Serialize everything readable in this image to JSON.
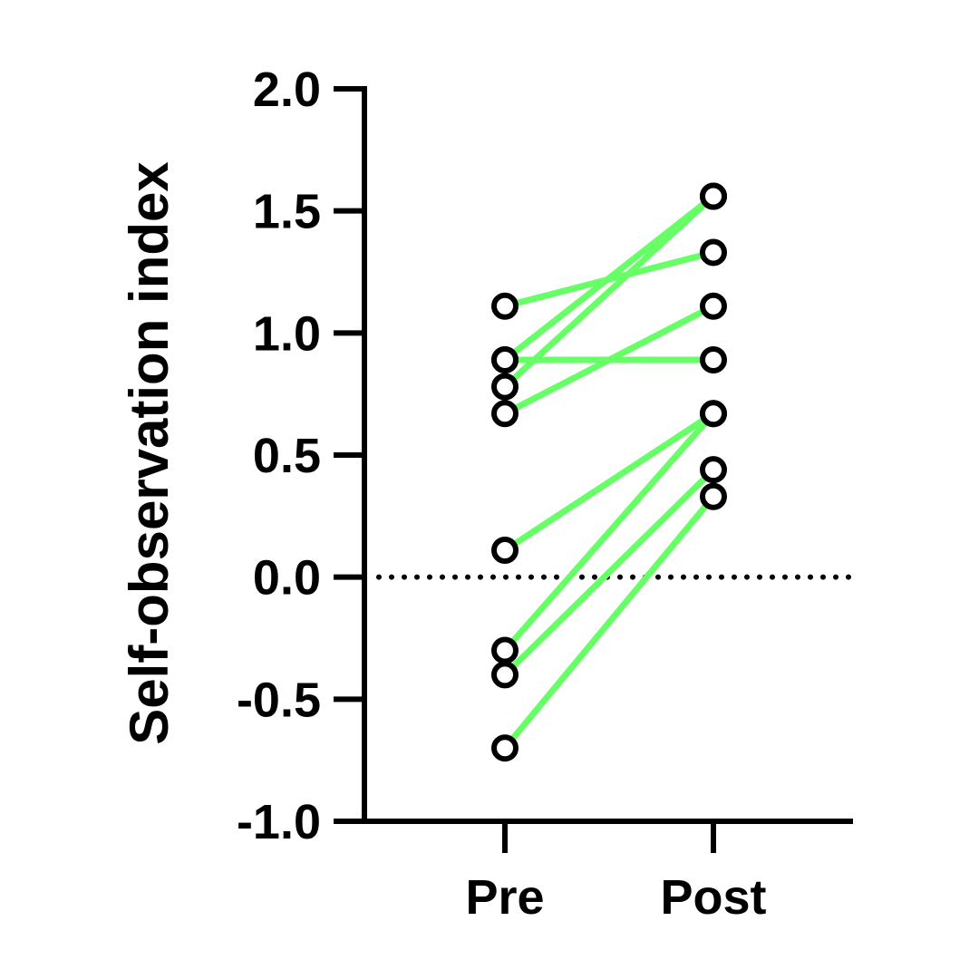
{
  "chart_data": {
    "type": "line",
    "ylabel": "Self-observation index",
    "xlabel": "",
    "categories": [
      "Pre",
      "Post"
    ],
    "ylim": [
      -1.0,
      2.0
    ],
    "yticks": [
      "-1.0",
      "-0.5",
      "0.0",
      "0.5",
      "1.0",
      "1.5",
      "2.0"
    ],
    "reference_line": {
      "y": 0.0,
      "style": "dotted"
    },
    "line_color": "#66ff66",
    "marker": "open-circle",
    "series": [
      {
        "values": [
          1.11,
          1.33
        ]
      },
      {
        "values": [
          0.89,
          1.56
        ]
      },
      {
        "values": [
          0.78,
          1.56
        ]
      },
      {
        "values": [
          0.89,
          0.89
        ]
      },
      {
        "values": [
          0.67,
          1.11
        ]
      },
      {
        "values": [
          0.11,
          0.67
        ]
      },
      {
        "values": [
          -0.3,
          0.67
        ]
      },
      {
        "values": [
          -0.4,
          0.44
        ]
      },
      {
        "values": [
          -0.7,
          0.33
        ]
      }
    ],
    "grid": false,
    "legend": "none"
  }
}
